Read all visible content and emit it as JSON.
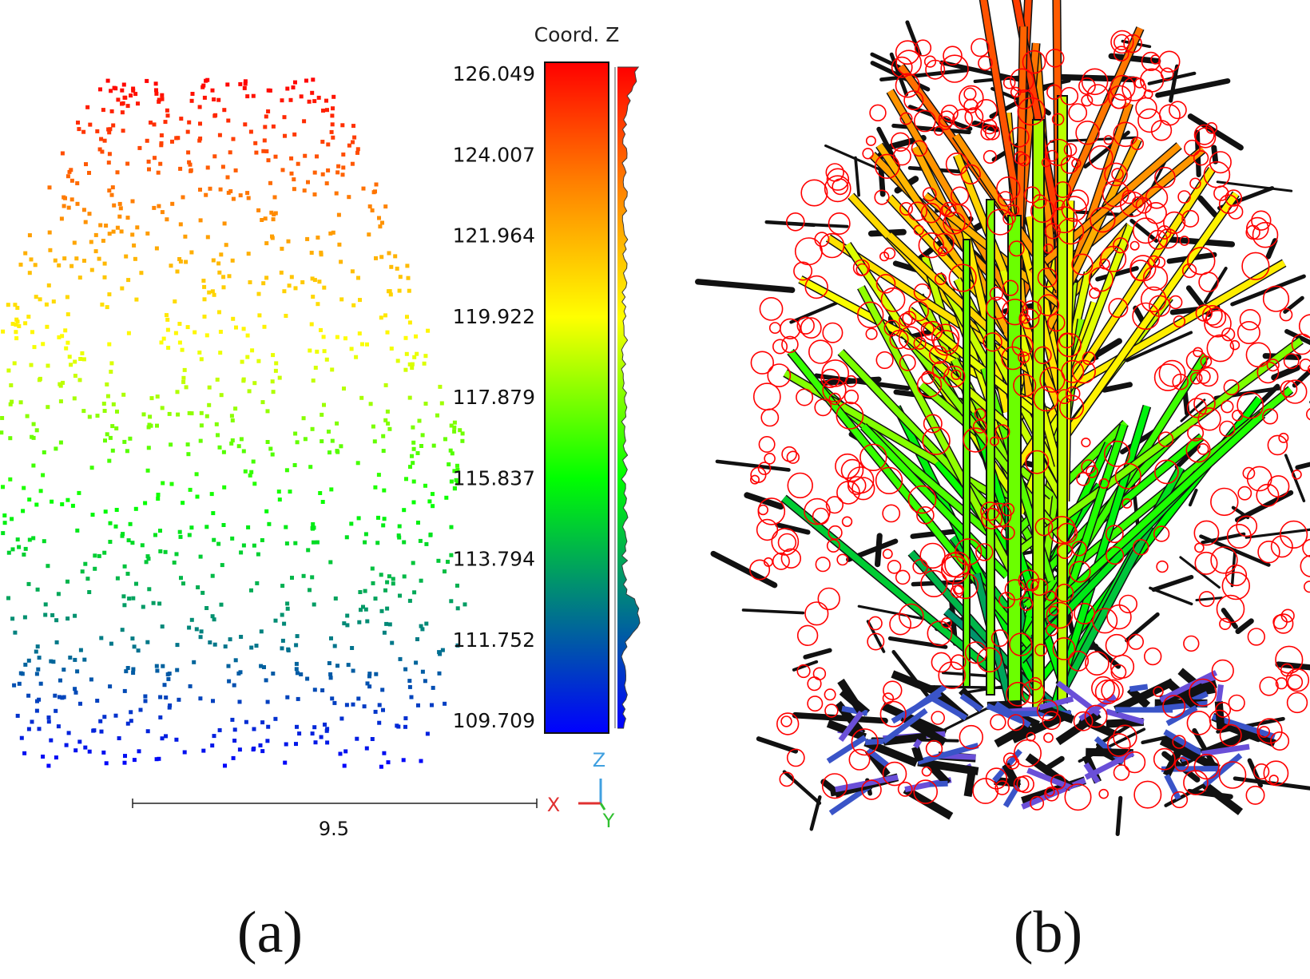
{
  "panel_a": {
    "caption": "(a)",
    "colorbar": {
      "title": "Coord. Z",
      "ticks": [
        "126.049",
        "124.007",
        "121.964",
        "119.922",
        "117.879",
        "115.837",
        "113.794",
        "111.752",
        "109.709"
      ],
      "min": 109.709,
      "max": 126.049,
      "colors": [
        "#ff0000",
        "#ff8000",
        "#ffff00",
        "#00ff00",
        "#009060",
        "#0000ff"
      ]
    },
    "scale_bar": {
      "label": "9.5",
      "value": 9.5
    },
    "axes": {
      "x": {
        "label": "X",
        "color": "#e03030"
      },
      "y": {
        "label": "Y",
        "color": "#30c030"
      },
      "z": {
        "label": "Z",
        "color": "#40a0e0"
      }
    }
  },
  "panel_b": {
    "caption": "(b)",
    "colors": {
      "cylinder_outline": "#000000",
      "circles": "#ff0000"
    }
  }
}
